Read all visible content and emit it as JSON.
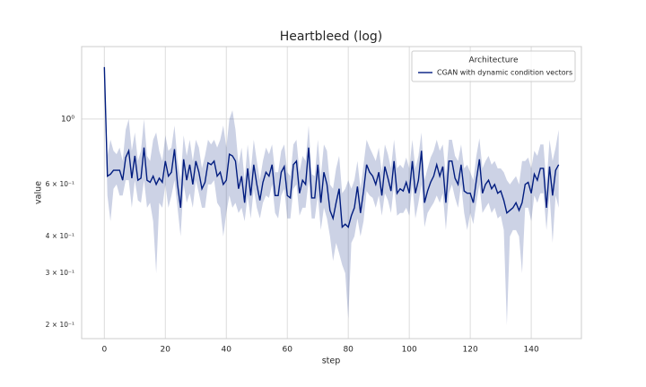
{
  "chart_data": {
    "type": "line",
    "title": "Heartbleed (log)",
    "x_label": "step",
    "y_label": "value",
    "yscale": "log",
    "grid": true,
    "xlim": [
      -7.45,
      156.45
    ],
    "xticks": [
      0,
      20,
      40,
      60,
      80,
      100,
      120,
      140
    ],
    "ylim": [
      0.18,
      1.76
    ],
    "yticks": [
      {
        "value": 0.2,
        "label": "2 × 10⁻¹"
      },
      {
        "value": 0.3,
        "label": "3 × 10⁻¹"
      },
      {
        "value": 0.4,
        "label": "4 × 10⁻¹"
      },
      {
        "value": 0.6,
        "label": "6 × 10⁻¹"
      },
      {
        "value": 1,
        "label": "10⁰"
      }
    ],
    "legend_title": "Architecture",
    "legend_loc": "upper right",
    "x": [
      0,
      1,
      2,
      3,
      4,
      5,
      6,
      7,
      8,
      9,
      10,
      11,
      12,
      13,
      14,
      15,
      16,
      17,
      18,
      19,
      20,
      21,
      22,
      23,
      24,
      25,
      26,
      27,
      28,
      29,
      30,
      31,
      32,
      33,
      34,
      35,
      36,
      37,
      38,
      39,
      40,
      41,
      42,
      43,
      44,
      45,
      46,
      47,
      48,
      49,
      50,
      51,
      52,
      53,
      54,
      55,
      56,
      57,
      58,
      59,
      60,
      61,
      62,
      63,
      64,
      65,
      66,
      67,
      68,
      69,
      70,
      71,
      72,
      73,
      74,
      75,
      76,
      77,
      78,
      79,
      80,
      81,
      82,
      83,
      84,
      85,
      86,
      87,
      88,
      89,
      90,
      91,
      92,
      93,
      94,
      95,
      96,
      97,
      98,
      99,
      100,
      101,
      102,
      103,
      104,
      105,
      106,
      107,
      108,
      109,
      110,
      111,
      112,
      113,
      114,
      115,
      116,
      117,
      118,
      119,
      120,
      121,
      122,
      123,
      124,
      125,
      126,
      127,
      128,
      129,
      130,
      131,
      132,
      133,
      134,
      135,
      136,
      137,
      138,
      139,
      140,
      141,
      142,
      143,
      144,
      145,
      146,
      147,
      148,
      149
    ],
    "series": [
      {
        "name": "CGAN with dynamic condition vectors",
        "color": "#001c7f",
        "values": [
          1.5,
          0.64,
          0.65,
          0.67,
          0.67,
          0.67,
          0.62,
          0.74,
          0.78,
          0.63,
          0.75,
          0.62,
          0.63,
          0.8,
          0.62,
          0.61,
          0.64,
          0.6,
          0.63,
          0.61,
          0.72,
          0.64,
          0.66,
          0.79,
          0.6,
          0.5,
          0.73,
          0.62,
          0.7,
          0.6,
          0.72,
          0.66,
          0.58,
          0.61,
          0.71,
          0.7,
          0.72,
          0.64,
          0.66,
          0.6,
          0.62,
          0.76,
          0.75,
          0.72,
          0.58,
          0.64,
          0.52,
          0.68,
          0.55,
          0.7,
          0.6,
          0.53,
          0.61,
          0.66,
          0.64,
          0.7,
          0.55,
          0.55,
          0.66,
          0.69,
          0.55,
          0.54,
          0.7,
          0.72,
          0.56,
          0.62,
          0.6,
          0.8,
          0.54,
          0.54,
          0.7,
          0.52,
          0.66,
          0.6,
          0.49,
          0.46,
          0.52,
          0.58,
          0.43,
          0.44,
          0.43,
          0.47,
          0.5,
          0.59,
          0.48,
          0.57,
          0.7,
          0.66,
          0.64,
          0.6,
          0.66,
          0.55,
          0.69,
          0.63,
          0.57,
          0.72,
          0.56,
          0.58,
          0.57,
          0.61,
          0.56,
          0.72,
          0.56,
          0.62,
          0.78,
          0.52,
          0.57,
          0.61,
          0.64,
          0.7,
          0.64,
          0.69,
          0.52,
          0.72,
          0.72,
          0.63,
          0.6,
          0.7,
          0.57,
          0.56,
          0.56,
          0.52,
          0.62,
          0.73,
          0.56,
          0.6,
          0.62,
          0.58,
          0.6,
          0.56,
          0.57,
          0.53,
          0.48,
          0.49,
          0.5,
          0.52,
          0.49,
          0.52,
          0.6,
          0.61,
          0.56,
          0.65,
          0.62,
          0.68,
          0.68,
          0.5,
          0.69,
          0.55,
          0.67,
          0.7
        ],
        "lower": [
          1.4,
          0.55,
          0.45,
          0.58,
          0.6,
          0.55,
          0.55,
          0.62,
          0.62,
          0.5,
          0.62,
          0.53,
          0.52,
          0.62,
          0.5,
          0.52,
          0.45,
          0.3,
          0.52,
          0.5,
          0.6,
          0.5,
          0.55,
          0.62,
          0.5,
          0.4,
          0.6,
          0.52,
          0.56,
          0.5,
          0.62,
          0.56,
          0.5,
          0.5,
          0.6,
          0.6,
          0.62,
          0.52,
          0.5,
          0.4,
          0.48,
          0.55,
          0.5,
          0.52,
          0.48,
          0.5,
          0.45,
          0.55,
          0.46,
          0.58,
          0.5,
          0.46,
          0.52,
          0.55,
          0.54,
          0.6,
          0.48,
          0.46,
          0.55,
          0.58,
          0.46,
          0.46,
          0.58,
          0.6,
          0.47,
          0.5,
          0.5,
          0.62,
          0.46,
          0.46,
          0.55,
          0.42,
          0.5,
          0.46,
          0.4,
          0.33,
          0.38,
          0.35,
          0.32,
          0.3,
          0.21,
          0.38,
          0.4,
          0.46,
          0.4,
          0.45,
          0.57,
          0.55,
          0.54,
          0.5,
          0.55,
          0.47,
          0.56,
          0.53,
          0.48,
          0.6,
          0.47,
          0.48,
          0.48,
          0.5,
          0.47,
          0.6,
          0.46,
          0.52,
          0.6,
          0.43,
          0.48,
          0.5,
          0.52,
          0.55,
          0.52,
          0.56,
          0.42,
          0.56,
          0.6,
          0.54,
          0.5,
          0.6,
          0.48,
          0.42,
          0.48,
          0.44,
          0.52,
          0.6,
          0.48,
          0.5,
          0.52,
          0.48,
          0.5,
          0.46,
          0.47,
          0.42,
          0.2,
          0.4,
          0.42,
          0.42,
          0.4,
          0.3,
          0.5,
          0.5,
          0.45,
          0.55,
          0.52,
          0.56,
          0.56,
          0.42,
          0.56,
          0.38,
          0.55,
          0.5
        ],
        "upper": [
          1.6,
          0.75,
          0.85,
          0.78,
          0.76,
          0.8,
          0.72,
          0.92,
          1.0,
          0.78,
          0.9,
          0.72,
          0.78,
          1.0,
          0.75,
          0.72,
          0.85,
          0.9,
          0.78,
          0.72,
          0.88,
          0.78,
          0.8,
          0.95,
          0.72,
          0.62,
          0.88,
          0.75,
          0.85,
          0.72,
          0.85,
          0.8,
          0.68,
          0.75,
          0.85,
          0.82,
          0.85,
          0.8,
          0.85,
          0.95,
          0.8,
          1.0,
          1.07,
          0.92,
          0.7,
          0.8,
          0.62,
          0.82,
          0.66,
          0.85,
          0.72,
          0.62,
          0.72,
          0.8,
          0.76,
          0.82,
          0.66,
          0.66,
          0.78,
          0.82,
          0.66,
          0.64,
          0.82,
          0.85,
          0.66,
          0.75,
          0.72,
          0.95,
          0.65,
          0.64,
          0.85,
          0.64,
          0.82,
          0.78,
          0.6,
          0.58,
          0.68,
          0.75,
          0.56,
          0.58,
          0.62,
          0.58,
          0.62,
          0.72,
          0.58,
          0.7,
          0.85,
          0.8,
          0.76,
          0.72,
          0.8,
          0.66,
          0.82,
          0.76,
          0.68,
          0.85,
          0.68,
          0.7,
          0.68,
          0.74,
          0.68,
          0.85,
          0.68,
          0.75,
          0.9,
          0.62,
          0.68,
          0.74,
          0.78,
          0.85,
          0.78,
          0.82,
          0.64,
          0.85,
          0.85,
          0.75,
          0.72,
          0.82,
          0.68,
          0.7,
          0.66,
          0.62,
          0.75,
          0.86,
          0.68,
          0.72,
          0.75,
          0.7,
          0.72,
          0.68,
          0.68,
          0.66,
          0.62,
          0.6,
          0.62,
          0.64,
          0.6,
          0.72,
          0.72,
          0.74,
          0.68,
          0.78,
          0.75,
          0.82,
          0.82,
          0.6,
          0.85,
          0.72,
          0.8,
          0.92
        ]
      }
    ]
  }
}
